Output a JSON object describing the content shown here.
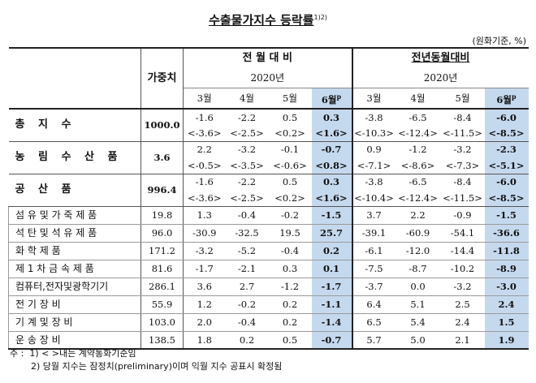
{
  "title": "수출물가지수 등락률",
  "title_sup": "1)2)",
  "unit": "(원화기준, %)",
  "header": {
    "weight": "가중치",
    "mom": "전 월 대 비",
    "yoy": "전년동월대비",
    "year": "2020년",
    "months": [
      "3월",
      "4월",
      "5월",
      "6월"
    ],
    "p_mark": "p"
  },
  "rows": [
    {
      "label": "총 지 수",
      "weight": "1000.0",
      "mom": [
        "-1.6",
        "-2.2",
        "0.5",
        "0.3"
      ],
      "mom_c": [
        "<-3.6>",
        "<-2.5>",
        "<0.2>",
        "<1.6>"
      ],
      "yoy": [
        "-3.8",
        "-6.5",
        "-8.4",
        "-6.0"
      ],
      "yoy_c": [
        "<-10.3>",
        "<-12.4>",
        "<-11.5>",
        "<-8.5>"
      ]
    },
    {
      "label": "농 림 수 산 품",
      "weight": "3.6",
      "mom": [
        "2.2",
        "-3.2",
        "-0.1",
        "-0.7"
      ],
      "mom_c": [
        "<-0.5>",
        "<-3.5>",
        "<-0.6>",
        "<0.8>"
      ],
      "yoy": [
        "0.9",
        "-1.2",
        "-3.2",
        "-2.3"
      ],
      "yoy_c": [
        "<-7.1>",
        "<-8.6>",
        "<-7.3>",
        "<-5.1>"
      ]
    },
    {
      "label": "공 산 품",
      "weight": "996.4",
      "mom": [
        "-1.6",
        "-2.2",
        "0.5",
        "0.3"
      ],
      "mom_c": [
        "<-3.6>",
        "<-2.5>",
        "<0.2>",
        "<1.6>"
      ],
      "yoy": [
        "-3.8",
        "-6.5",
        "-8.4",
        "-6.0"
      ],
      "yoy_c": [
        "<-10.4>",
        "<-12.4>",
        "<-11.5>",
        "<-8.5>"
      ]
    }
  ],
  "subrows": [
    {
      "label": "섬 유 및 가 죽 제 품",
      "weight": "19.8",
      "mom": [
        "1.3",
        "-0.4",
        "-0.2",
        "-1.5"
      ],
      "yoy": [
        "3.7",
        "2.2",
        "-0.9",
        "-1.5"
      ]
    },
    {
      "label": "석 탄 및 석 유 제 품",
      "weight": "96.0",
      "mom": [
        "-30.9",
        "-32.5",
        "19.5",
        "25.7"
      ],
      "yoy": [
        "-39.1",
        "-60.9",
        "-54.1",
        "-36.6"
      ]
    },
    {
      "label": "화 학 제 품",
      "weight": "171.2",
      "mom": [
        "-3.2",
        "-5.2",
        "-0.4",
        "0.2"
      ],
      "yoy": [
        "-6.1",
        "-12.0",
        "-14.4",
        "-11.8"
      ]
    },
    {
      "label": "제 1 차 금 속 제 품",
      "weight": "81.6",
      "mom": [
        "-1.7",
        "-2.1",
        "0.3",
        "0.1"
      ],
      "yoy": [
        "-7.5",
        "-8.7",
        "-10.2",
        "-8.9"
      ]
    },
    {
      "label": "컴퓨터,전자및광학기기",
      "weight": "286.1",
      "mom": [
        "3.6",
        "2.7",
        "-1.2",
        "-1.7"
      ],
      "yoy": [
        "-3.7",
        "0.0",
        "-3.2",
        "-3.0"
      ]
    },
    {
      "label": "전 기 장 비",
      "weight": "55.9",
      "mom": [
        "1.2",
        "-0.2",
        "0.2",
        "-1.1"
      ],
      "yoy": [
        "6.4",
        "5.1",
        "2.5",
        "2.4"
      ]
    },
    {
      "label": "기 계 및 장 비",
      "weight": "103.0",
      "mom": [
        "2.0",
        "-0.4",
        "0.2",
        "-1.4"
      ],
      "yoy": [
        "6.5",
        "5.4",
        "2.4",
        "1.5"
      ]
    },
    {
      "label": "운 송 장 비",
      "weight": "138.5",
      "mom": [
        "1.8",
        "0.2",
        "0.5",
        "-0.7"
      ],
      "yoy": [
        "5.7",
        "5.0",
        "2.1",
        "1.9"
      ]
    }
  ],
  "notes": {
    "prefix": "주 :",
    "n1": "1) < >내는 계약통화기준임",
    "n2": "2) 당월 지수는 잠정치(preliminary)이며 익월 지수 공표시 확정됨"
  }
}
